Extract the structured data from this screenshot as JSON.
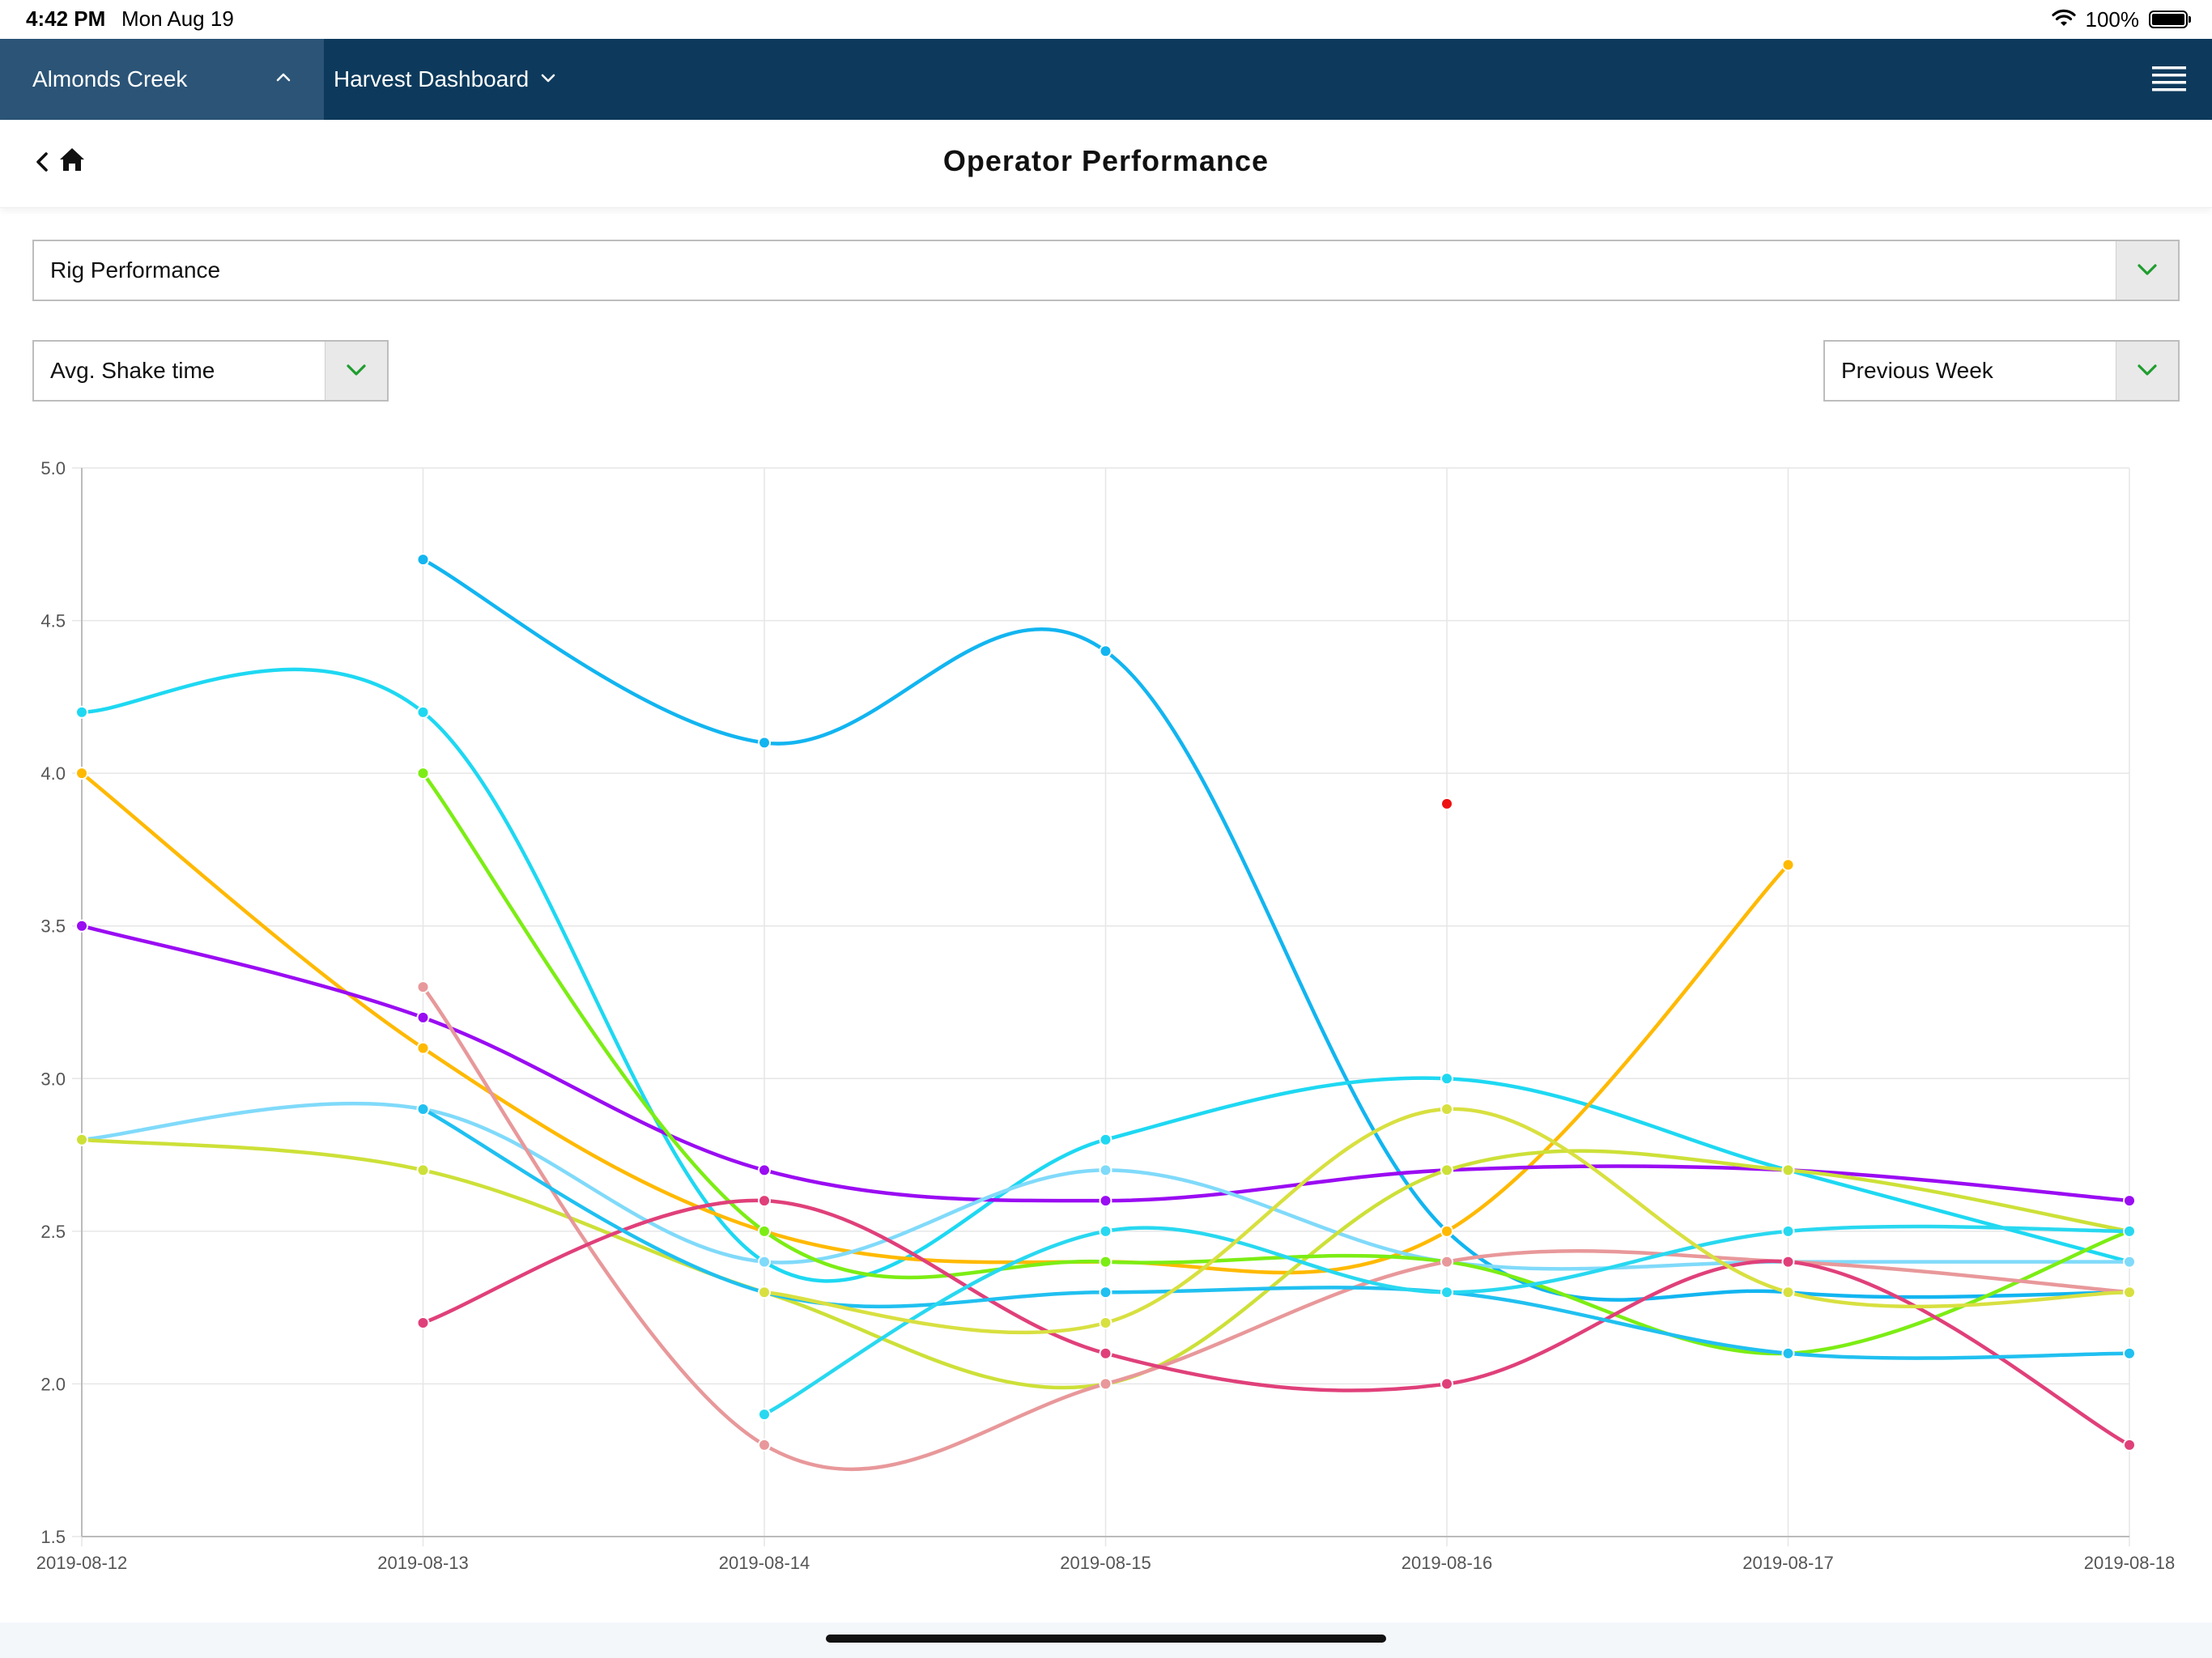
{
  "status_bar": {
    "time": "4:42 PM",
    "date": "Mon Aug 19",
    "battery_text": "100%",
    "battery_level": 1.0
  },
  "nav": {
    "farm": "Almonds Creek",
    "dashboard": "Harvest Dashboard",
    "color": "#0d3a5c"
  },
  "header": {
    "title": "Operator Performance"
  },
  "filters": {
    "report": "Rig Performance",
    "metric": "Avg. Shake time",
    "period": "Previous Week",
    "arrow_color": "#1f9d2e"
  },
  "chart_data": {
    "type": "line",
    "x": [
      "2019-08-12",
      "2019-08-13",
      "2019-08-14",
      "2019-08-15",
      "2019-08-16",
      "2019-08-17",
      "2019-08-18"
    ],
    "ylim": [
      1.5,
      5.0
    ],
    "yticks": [
      "1.5",
      "2.0",
      "2.5",
      "3.0",
      "3.5",
      "4.0",
      "4.5",
      "5.0"
    ],
    "grid": true,
    "legend": "none",
    "series": [
      {
        "color": "#12b5f0",
        "values": [
          null,
          4.7,
          4.1,
          4.4,
          2.5,
          2.3,
          2.3
        ]
      },
      {
        "color": "#1ed8f2",
        "values": [
          4.2,
          4.2,
          2.4,
          2.8,
          3.0,
          2.7,
          2.4
        ]
      },
      {
        "color": "#ffb900",
        "values": [
          4.0,
          3.1,
          2.5,
          2.4,
          2.5,
          3.7,
          null
        ]
      },
      {
        "color": "#9a0cf2",
        "values": [
          3.5,
          3.2,
          2.7,
          2.6,
          2.7,
          2.7,
          2.6
        ]
      },
      {
        "color": "#80dafa",
        "values": [
          2.8,
          2.9,
          2.4,
          2.7,
          2.4,
          2.4,
          2.4
        ]
      },
      {
        "color": "#cde038",
        "values": [
          2.8,
          2.7,
          2.3,
          2.0,
          2.7,
          2.7,
          2.5
        ]
      },
      {
        "color": "#7ced14",
        "values": [
          null,
          4.0,
          2.5,
          2.4,
          2.4,
          2.1,
          2.5
        ]
      },
      {
        "color": "#e8989a",
        "values": [
          null,
          3.3,
          1.8,
          2.0,
          2.4,
          2.4,
          2.3
        ]
      },
      {
        "color": "#e0407a",
        "values": [
          null,
          2.2,
          2.6,
          2.1,
          2.0,
          2.4,
          1.8
        ]
      },
      {
        "color": "#20c0f0",
        "values": [
          null,
          2.9,
          2.3,
          2.3,
          2.3,
          2.1,
          2.1
        ]
      },
      {
        "color": "#28d8f0",
        "values": [
          null,
          null,
          1.9,
          2.5,
          2.3,
          2.5,
          2.5
        ]
      },
      {
        "color": "#d8e040",
        "values": [
          null,
          null,
          2.3,
          2.2,
          2.9,
          2.3,
          2.3
        ]
      },
      {
        "color": "#ee1111",
        "values": [
          null,
          null,
          null,
          null,
          3.9,
          null,
          null
        ]
      }
    ]
  }
}
